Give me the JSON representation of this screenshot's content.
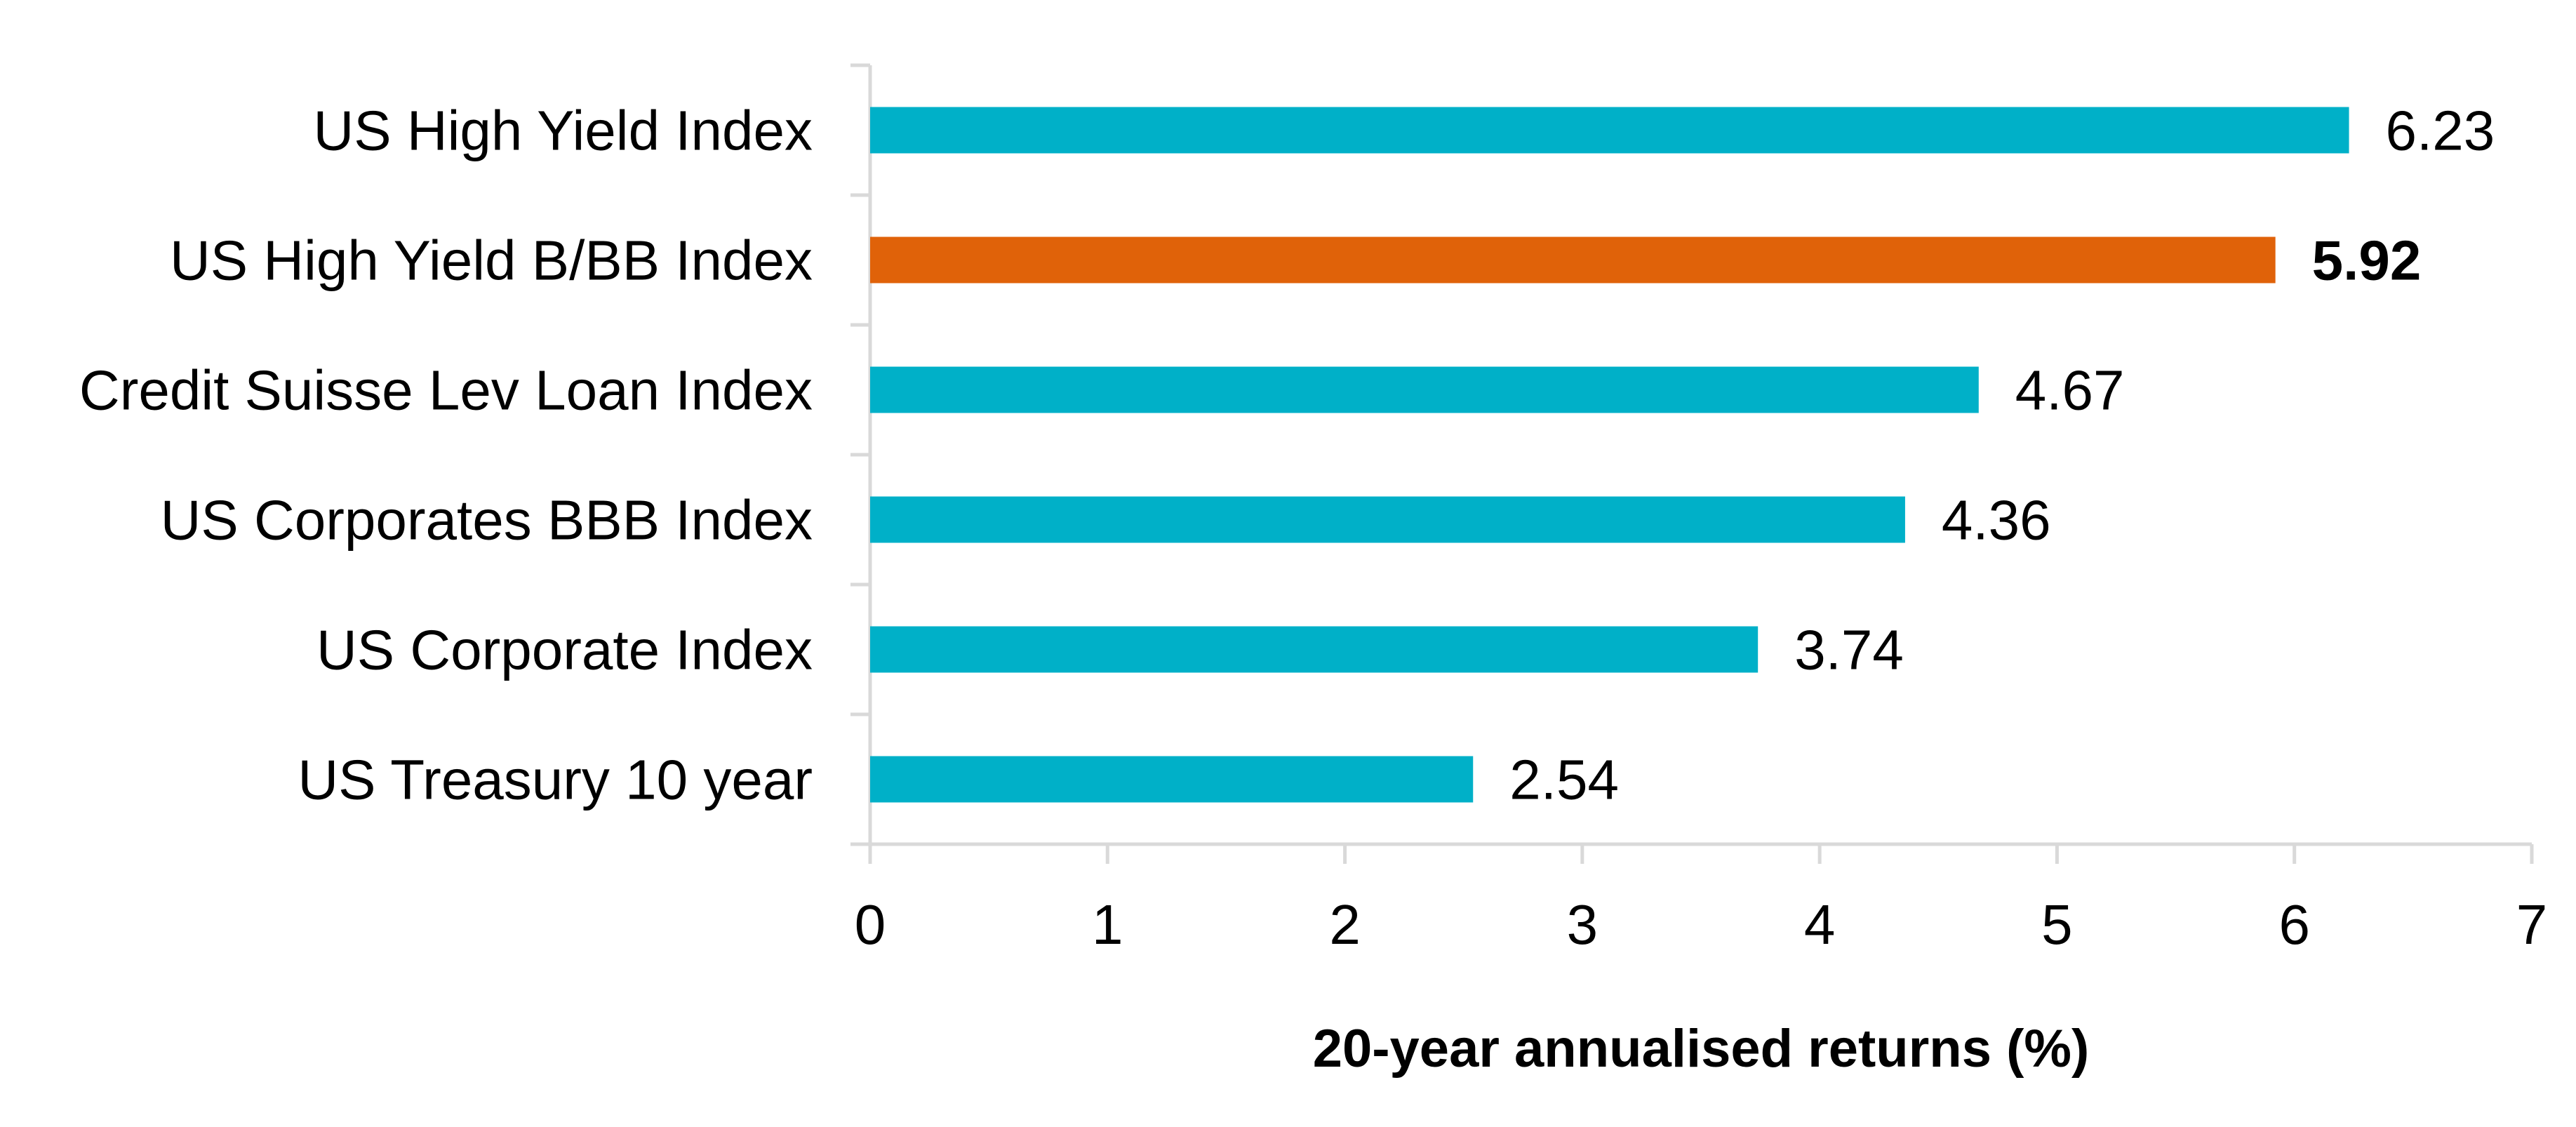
{
  "chart_data": {
    "type": "bar",
    "orientation": "horizontal",
    "categories": [
      "US High Yield Index",
      "US High Yield B/BB Index",
      "Credit Suisse Lev Loan Index",
      "US Corporates BBB Index",
      "US Corporate Index",
      "US Treasury 10 year"
    ],
    "values": [
      6.23,
      5.92,
      4.67,
      4.36,
      3.74,
      2.54
    ],
    "value_labels": [
      "6.23",
      "5.92",
      "4.67",
      "4.36",
      "3.74",
      "2.54"
    ],
    "highlight_index": 1,
    "title": "",
    "xlabel": "20-year annualised returns (%)",
    "ylabel": "",
    "xlim": [
      0,
      7
    ],
    "xticks": [
      0,
      1,
      2,
      3,
      4,
      5,
      6,
      7
    ],
    "grid": false,
    "legend": "none",
    "colors": {
      "bar": "#00B0C8",
      "highlight_bar": "#E06209",
      "highlight_text": "#E06209",
      "axis": "#D9D9D9",
      "text": "#000000"
    }
  }
}
